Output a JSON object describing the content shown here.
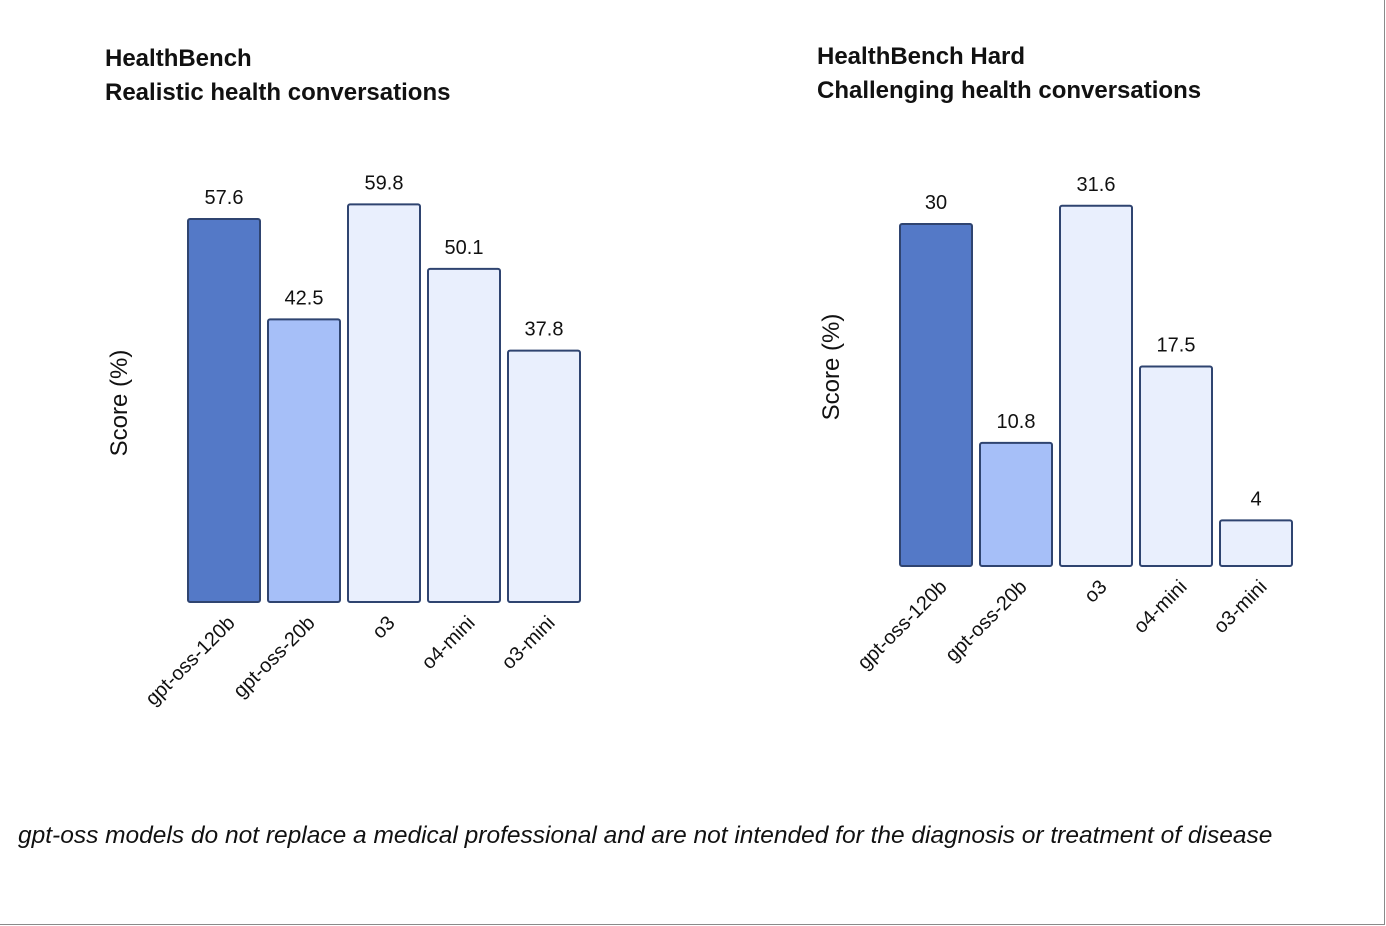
{
  "colors": {
    "gpt_oss_120b_fill": "#5479c7",
    "gpt_oss_20b_fill": "#a6bff8",
    "other_fill": "#e9effd",
    "bar_stroke": "#2f4470"
  },
  "chart_data": [
    {
      "type": "bar",
      "title": "HealthBench",
      "subtitle": "Realistic health conversations",
      "ylabel": "Score (%)",
      "xlabel": "",
      "categories": [
        "gpt-oss-120b",
        "gpt-oss-20b",
        "o3",
        "o4-mini",
        "o3-mini"
      ],
      "values": [
        57.6,
        42.5,
        59.8,
        50.1,
        37.8
      ],
      "value_labels": [
        "57.6",
        "42.5",
        "59.8",
        "50.1",
        "37.8"
      ],
      "ylim": [
        0,
        60
      ],
      "grid": false,
      "legend": "none"
    },
    {
      "type": "bar",
      "title": "HealthBench Hard",
      "subtitle": "Challenging health conversations",
      "ylabel": "Score (%)",
      "xlabel": "",
      "categories": [
        "gpt-oss-120b",
        "gpt-oss-20b",
        "o3",
        "o4-mini",
        "o3-mini"
      ],
      "values": [
        30,
        10.8,
        31.6,
        17.5,
        4
      ],
      "value_labels": [
        "30",
        "10.8",
        "31.6",
        "17.5",
        "4"
      ],
      "ylim": [
        0,
        32
      ],
      "grid": false,
      "legend": "none"
    }
  ],
  "footnote": "gpt-oss models do not replace a medical professional and are not intended for the diagnosis or treatment of disease"
}
